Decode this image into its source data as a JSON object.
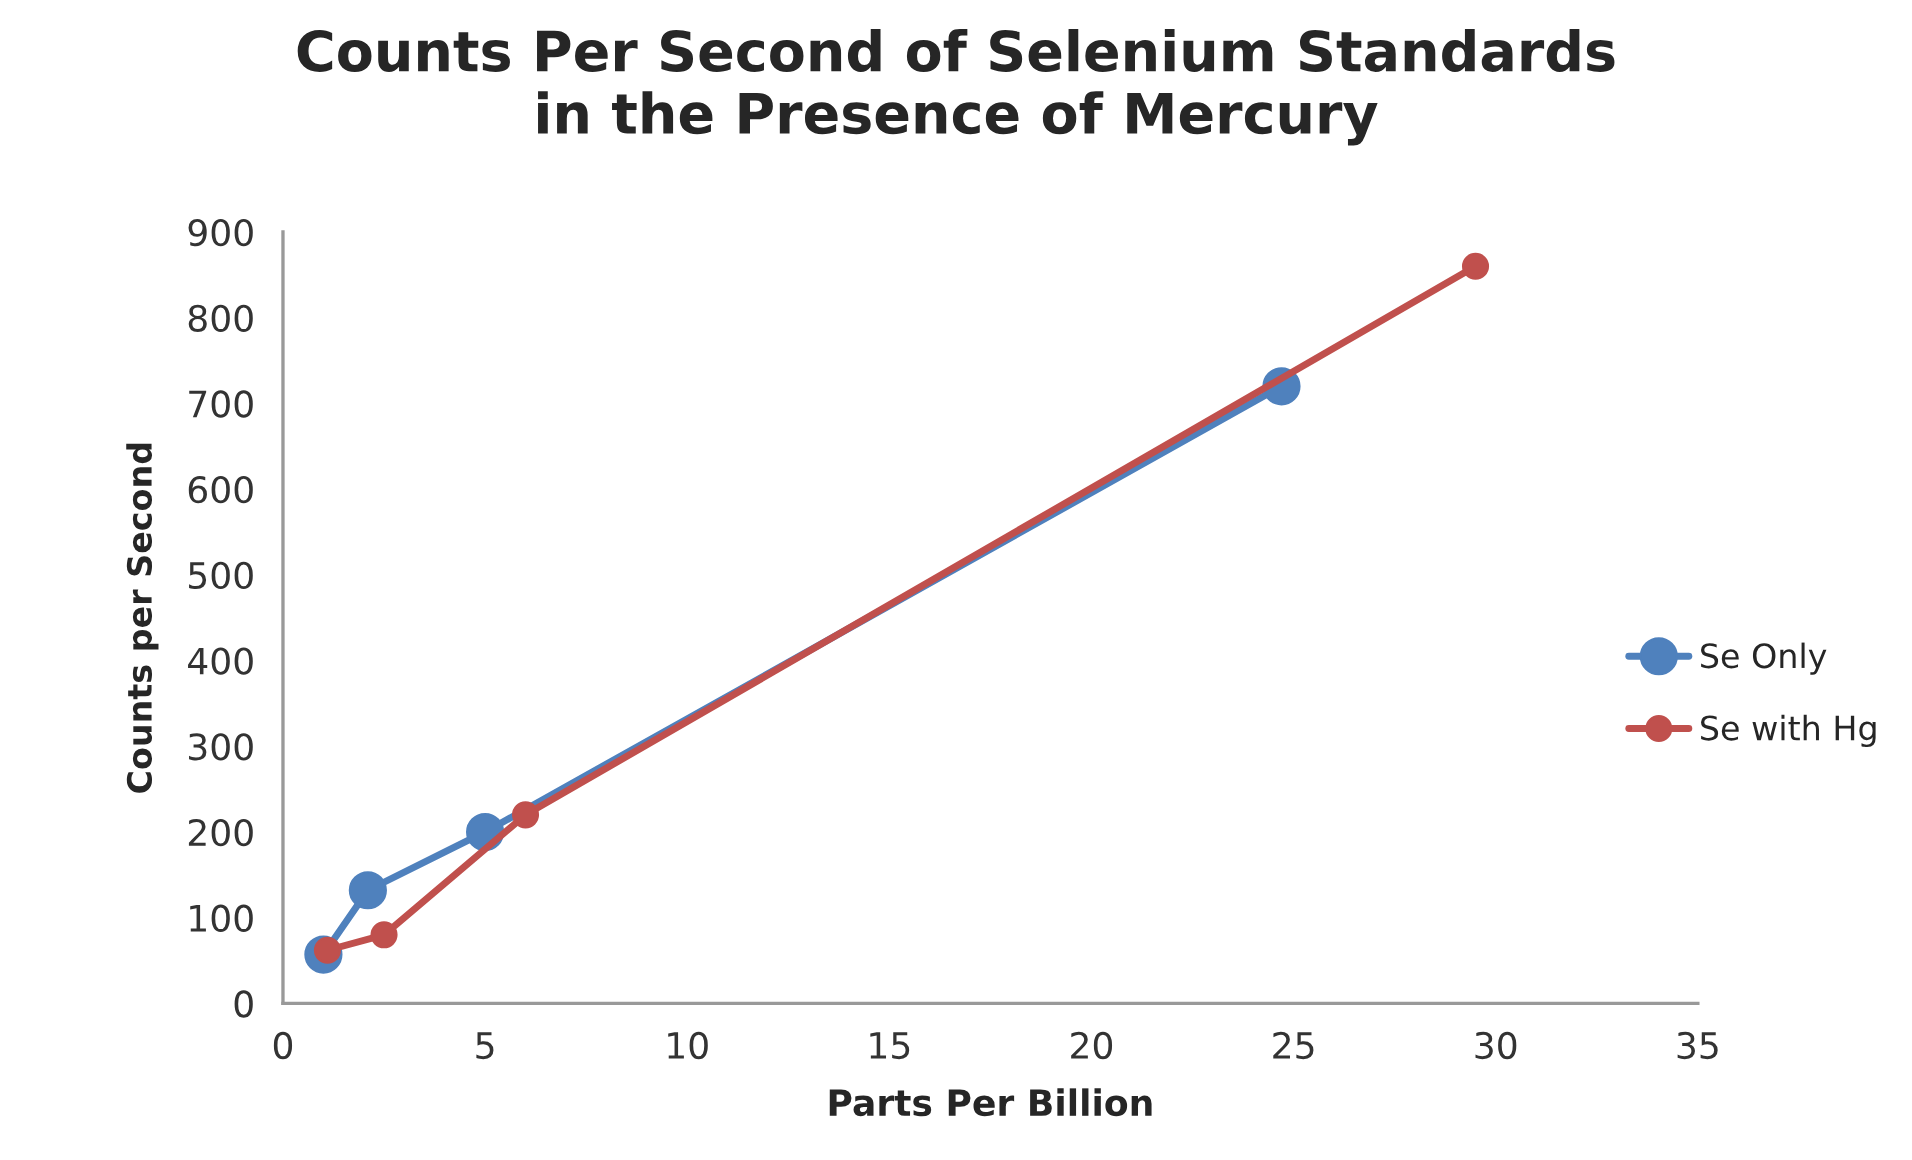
{
  "chart_data": {
    "type": "line",
    "title": "Counts Per Second of Selenium Standards\nin the Presence of Mercury",
    "xlabel": "Parts Per Billion",
    "ylabel": "Counts per Second",
    "xlim": [
      0,
      35
    ],
    "xticks": [
      0,
      5,
      10,
      15,
      20,
      25,
      30,
      35
    ],
    "ylim": [
      0,
      900
    ],
    "yticks": [
      0,
      100,
      200,
      300,
      400,
      500,
      600,
      700,
      800,
      900
    ],
    "grid": false,
    "legend": "right",
    "marker": "circle",
    "line_style": "solid",
    "series": [
      {
        "name": "Se Only",
        "color": "#4f81bd",
        "x": [
          1,
          2.1,
          5,
          24.7
        ],
        "values": [
          57,
          132,
          200,
          720
        ]
      },
      {
        "name": "Se with Hg",
        "color": "#c0504d",
        "x": [
          1.1,
          2.5,
          6,
          29.5
        ],
        "values": [
          62,
          80,
          220,
          860
        ]
      }
    ]
  }
}
